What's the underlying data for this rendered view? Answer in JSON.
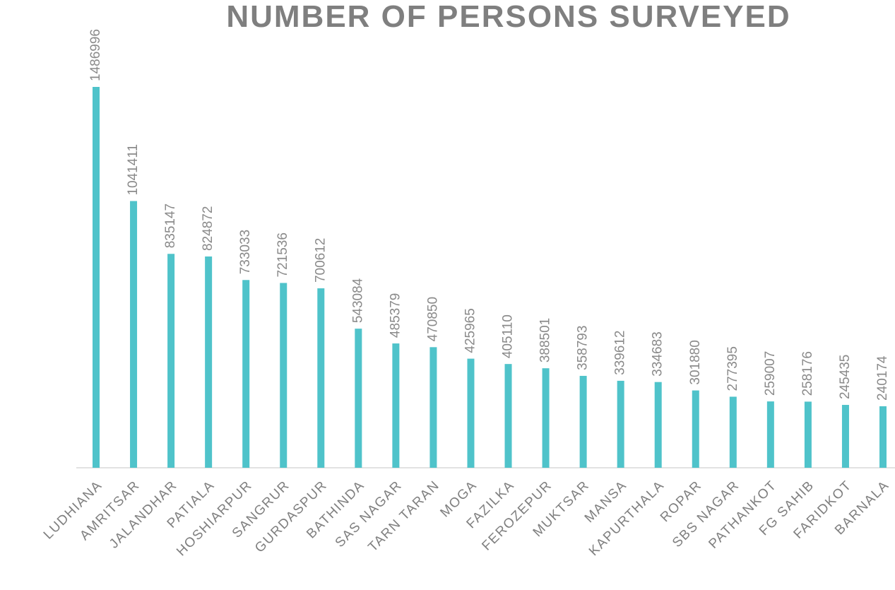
{
  "chart_data": {
    "type": "bar",
    "title": "NUMBER OF PERSONS SURVEYED",
    "categories": [
      "LUDHIANA",
      "AMRITSAR",
      "JALANDHAR",
      "PATIALA",
      "HOSHIARPUR",
      "SANGRUR",
      "GURDASPUR",
      "BATHINDA",
      "SAS NAGAR",
      "TARN TARAN",
      "MOGA",
      "FAZILKA",
      "FEROZEPUR",
      "MUKTSAR",
      "MANSA",
      "KAPURTHALA",
      "ROPAR",
      "SBS NAGAR",
      "PATHANKOT",
      "FG SAHIB",
      "FARIDKOT",
      "BARNALA"
    ],
    "values": [
      1486996,
      1041411,
      835147,
      824872,
      733033,
      721536,
      700612,
      543084,
      485379,
      470850,
      425965,
      405110,
      388501,
      358793,
      339612,
      334683,
      301880,
      277395,
      259007,
      258176,
      245435,
      240174
    ],
    "color": "#4fc3ca"
  }
}
